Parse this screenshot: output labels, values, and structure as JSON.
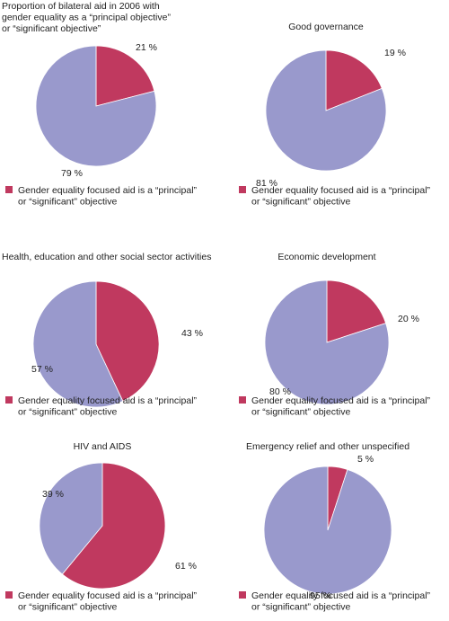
{
  "colors": {
    "gender": "#c0395f",
    "other": "#9999cc",
    "stroke": "#ffffff"
  },
  "legend_line1": "Gender equality focused aid is a “principal”",
  "legend_line2": "or “significant” objective",
  "chart_data": [
    {
      "type": "pie",
      "title_lines": [
        "Proportion of bilateral aid in 2006 with",
        "gender equality as a “principal objective”",
        "or “significant objective”"
      ],
      "slices": [
        {
          "name": "Gender equality focused aid is a “principal” or “significant” objective",
          "value": 21,
          "label": "21 %"
        },
        {
          "name": "",
          "value": 79,
          "label": "79 %"
        }
      ]
    },
    {
      "type": "pie",
      "title_lines": [
        "Good governance"
      ],
      "slices": [
        {
          "name": "Gender equality focused aid is a “principal” or “significant” objective",
          "value": 19,
          "label": "19 %"
        },
        {
          "name": "",
          "value": 81,
          "label": "81 %"
        }
      ]
    },
    {
      "type": "pie",
      "title_lines": [
        "Health, education and other social sector activities"
      ],
      "slices": [
        {
          "name": "Gender equality focused aid is a “principal” or “significant” objective",
          "value": 43,
          "label": "43 %"
        },
        {
          "name": "",
          "value": 57,
          "label": "57 %"
        }
      ]
    },
    {
      "type": "pie",
      "title_lines": [
        "Economic development"
      ],
      "slices": [
        {
          "name": "Gender equality focused aid is a “principal” or “significant” objective",
          "value": 20,
          "label": "20 %"
        },
        {
          "name": "",
          "value": 80,
          "label": "80 %"
        }
      ]
    },
    {
      "type": "pie",
      "title_lines": [
        "HIV and AIDS"
      ],
      "slices": [
        {
          "name": "Gender equality focused aid is a “principal” or “significant” objective",
          "value": 61,
          "label": "61 %"
        },
        {
          "name": "",
          "value": 39,
          "label": "39 %"
        }
      ]
    },
    {
      "type": "pie",
      "title_lines": [
        "Emergency relief and other unspecified"
      ],
      "slices": [
        {
          "name": "Gender equality focused aid is a “principal” or “significant” objective",
          "value": 5,
          "label": "5 %"
        },
        {
          "name": "",
          "value": 95,
          "label": "95 %"
        }
      ]
    }
  ]
}
